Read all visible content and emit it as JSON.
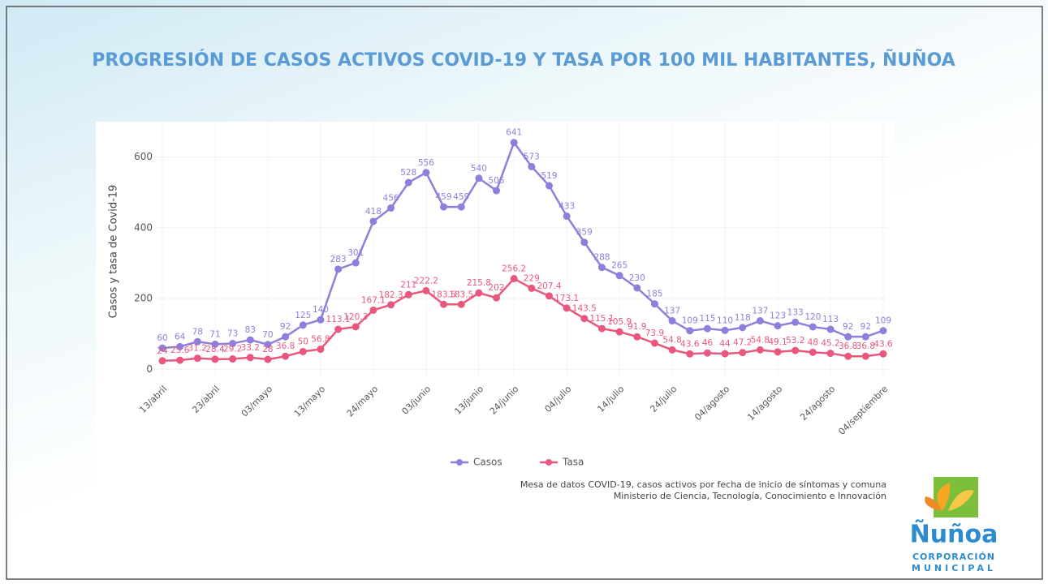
{
  "title": "PROGRESIÓN DE CASOS ACTIVOS COVID-19 Y TASA POR 100 MIL HABITANTES, ÑUÑOA",
  "chart_data": {
    "type": "line",
    "y_label": "Casos y tasa de Covid-19",
    "categories": [
      "13/abril",
      null,
      null,
      "23/abril",
      null,
      null,
      "03/mayo",
      null,
      null,
      "13/mayo",
      null,
      null,
      "24/mayo",
      null,
      null,
      "03/junio",
      null,
      null,
      "13/junio",
      null,
      "24/junio",
      null,
      null,
      "04/julio",
      null,
      null,
      "14/julio",
      null,
      null,
      "24/julio",
      null,
      null,
      "04/agosto",
      null,
      null,
      "14/agosto",
      null,
      null,
      "24/agosto",
      null,
      null,
      "04/septiembre"
    ],
    "series": [
      {
        "name": "Casos",
        "color": "#8e7fdc",
        "values": [
          60,
          64,
          78,
          71,
          73,
          83,
          70,
          92,
          125,
          140,
          283,
          301,
          418,
          456,
          528,
          556,
          459,
          459,
          540,
          505,
          641,
          573,
          519,
          433,
          359,
          288,
          265,
          230,
          185,
          137,
          109,
          115,
          110,
          118,
          137,
          123,
          133,
          120,
          113,
          92,
          92,
          109
        ]
      },
      {
        "name": "Tasa",
        "color": "#e9577d",
        "values": [
          24,
          25.6,
          31.2,
          28.4,
          29.2,
          33.2,
          28,
          36.8,
          50,
          56.8,
          113.1,
          120.3,
          167.1,
          182.3,
          211,
          222.2,
          183.5,
          183.5,
          215.8,
          202,
          256.2,
          229,
          207.4,
          173.1,
          143.5,
          115.1,
          105.9,
          91.9,
          73.9,
          54.8,
          43.6,
          46,
          44,
          47.2,
          54.8,
          49.1,
          53.2,
          48,
          45.2,
          36.8,
          36.8,
          43.6
        ]
      }
    ],
    "ylim": [
      -20,
      700
    ],
    "yticks": [
      0,
      200,
      400,
      600
    ],
    "grid": true,
    "legend": "bottom"
  },
  "source": [
    "Mesa de datos COVID-19, casos activos por fecha de inicio de síntomas y comuna",
    "Ministerio de Ciencia, Tecnología, Conocimiento e Innovación"
  ],
  "logo": {
    "name": "Ñuñoa",
    "line1": "CORPORACIÓN",
    "line2": "MUNICIPAL"
  }
}
